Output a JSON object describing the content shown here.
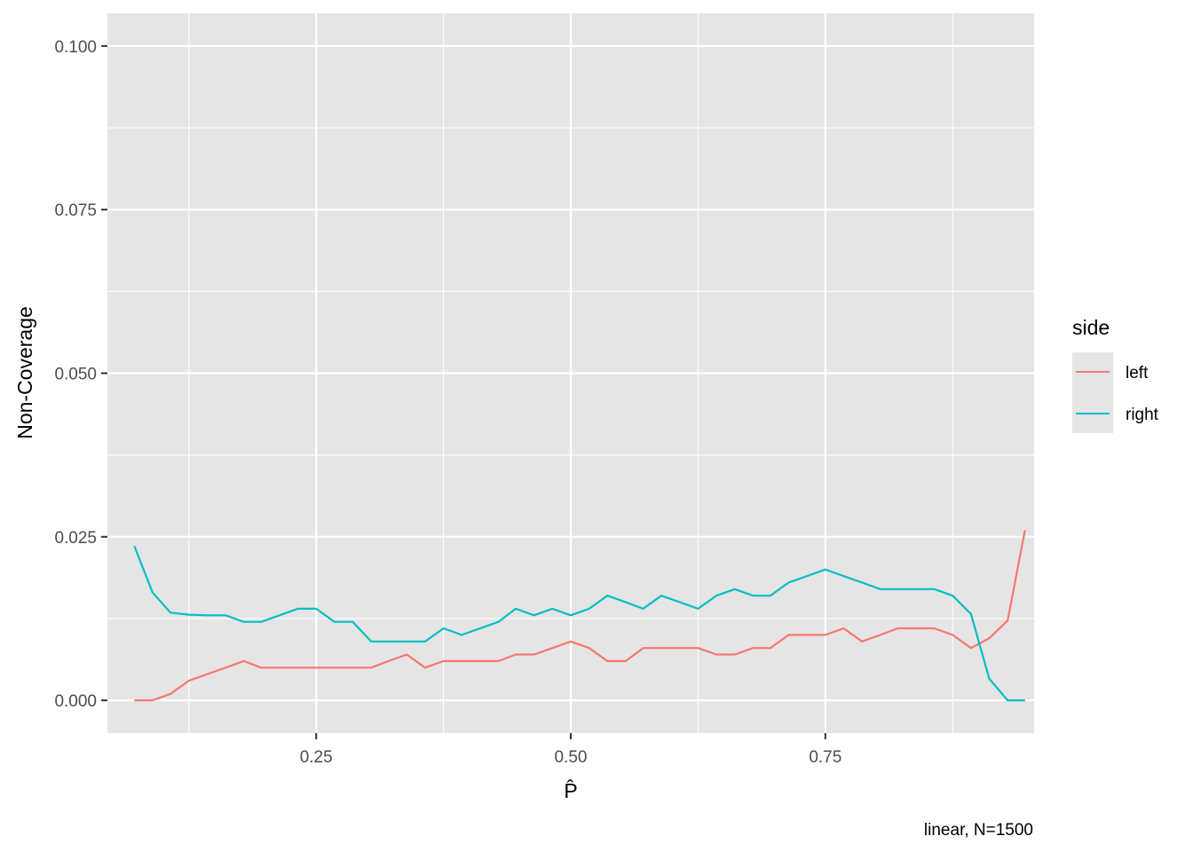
{
  "chart_data": {
    "type": "line",
    "xlabel": "P̂",
    "ylabel": "Non-Coverage",
    "caption": "linear, N=1500",
    "xlim": [
      0.045,
      0.955
    ],
    "ylim": [
      -0.005,
      0.105
    ],
    "x_ticks": [
      0.25,
      0.5,
      0.75
    ],
    "x_tick_labels": [
      "0.25",
      "0.50",
      "0.75"
    ],
    "x_minor_ticks": [
      0.125,
      0.375,
      0.625,
      0.875
    ],
    "y_ticks": [
      0.0,
      0.025,
      0.05,
      0.075,
      0.1
    ],
    "y_tick_labels": [
      "0.000",
      "0.025",
      "0.050",
      "0.075",
      "0.100"
    ],
    "y_minor_ticks": [
      0.0125,
      0.0375,
      0.0625,
      0.0875
    ],
    "grid": true,
    "panel_background": "#e5e5e5",
    "legend": {
      "title": "side",
      "position": "right"
    },
    "series": [
      {
        "name": "left",
        "color": "#f8766d",
        "points": [
          [
            0.0714,
            0.0
          ],
          [
            0.0893,
            0.0
          ],
          [
            0.107,
            0.001
          ],
          [
            0.125,
            0.003
          ],
          [
            0.143,
            0.004
          ],
          [
            0.161,
            0.005
          ],
          [
            0.179,
            0.006
          ],
          [
            0.196,
            0.005
          ],
          [
            0.214,
            0.005
          ],
          [
            0.232,
            0.005
          ],
          [
            0.25,
            0.005
          ],
          [
            0.268,
            0.005
          ],
          [
            0.286,
            0.005
          ],
          [
            0.304,
            0.005
          ],
          [
            0.321,
            0.006
          ],
          [
            0.339,
            0.007
          ],
          [
            0.357,
            0.005
          ],
          [
            0.375,
            0.006
          ],
          [
            0.393,
            0.006
          ],
          [
            0.411,
            0.006
          ],
          [
            0.429,
            0.006
          ],
          [
            0.446,
            0.007
          ],
          [
            0.464,
            0.007
          ],
          [
            0.482,
            0.008
          ],
          [
            0.5,
            0.009
          ],
          [
            0.518,
            0.008
          ],
          [
            0.536,
            0.006
          ],
          [
            0.554,
            0.006
          ],
          [
            0.571,
            0.008
          ],
          [
            0.589,
            0.008
          ],
          [
            0.607,
            0.008
          ],
          [
            0.625,
            0.008
          ],
          [
            0.643,
            0.007
          ],
          [
            0.661,
            0.007
          ],
          [
            0.679,
            0.008
          ],
          [
            0.696,
            0.008
          ],
          [
            0.714,
            0.01
          ],
          [
            0.732,
            0.01
          ],
          [
            0.75,
            0.01
          ],
          [
            0.768,
            0.011
          ],
          [
            0.786,
            0.009
          ],
          [
            0.804,
            0.01
          ],
          [
            0.821,
            0.011
          ],
          [
            0.839,
            0.011
          ],
          [
            0.857,
            0.011
          ],
          [
            0.875,
            0.01
          ],
          [
            0.893,
            0.008
          ],
          [
            0.911,
            0.0095
          ],
          [
            0.929,
            0.0122
          ],
          [
            0.946,
            0.026
          ]
        ]
      },
      {
        "name": "right",
        "color": "#00bfc4",
        "points": [
          [
            0.0714,
            0.0236
          ],
          [
            0.0893,
            0.0165
          ],
          [
            0.107,
            0.0134
          ],
          [
            0.125,
            0.0131
          ],
          [
            0.143,
            0.013
          ],
          [
            0.161,
            0.013
          ],
          [
            0.179,
            0.012
          ],
          [
            0.196,
            0.012
          ],
          [
            0.214,
            0.013
          ],
          [
            0.232,
            0.014
          ],
          [
            0.25,
            0.014
          ],
          [
            0.268,
            0.012
          ],
          [
            0.286,
            0.012
          ],
          [
            0.304,
            0.009
          ],
          [
            0.321,
            0.009
          ],
          [
            0.339,
            0.009
          ],
          [
            0.357,
            0.009
          ],
          [
            0.375,
            0.011
          ],
          [
            0.393,
            0.01
          ],
          [
            0.411,
            0.011
          ],
          [
            0.429,
            0.012
          ],
          [
            0.446,
            0.014
          ],
          [
            0.464,
            0.013
          ],
          [
            0.482,
            0.014
          ],
          [
            0.5,
            0.013
          ],
          [
            0.518,
            0.014
          ],
          [
            0.536,
            0.016
          ],
          [
            0.554,
            0.015
          ],
          [
            0.571,
            0.014
          ],
          [
            0.589,
            0.016
          ],
          [
            0.607,
            0.015
          ],
          [
            0.625,
            0.014
          ],
          [
            0.643,
            0.016
          ],
          [
            0.661,
            0.017
          ],
          [
            0.679,
            0.016
          ],
          [
            0.696,
            0.016
          ],
          [
            0.714,
            0.018
          ],
          [
            0.732,
            0.019
          ],
          [
            0.75,
            0.02
          ],
          [
            0.768,
            0.019
          ],
          [
            0.786,
            0.018
          ],
          [
            0.804,
            0.017
          ],
          [
            0.821,
            0.017
          ],
          [
            0.839,
            0.017
          ],
          [
            0.857,
            0.017
          ],
          [
            0.875,
            0.016
          ],
          [
            0.893,
            0.0132
          ],
          [
            0.911,
            0.0033
          ],
          [
            0.929,
            0.0
          ],
          [
            0.946,
            0.0
          ]
        ]
      }
    ]
  }
}
